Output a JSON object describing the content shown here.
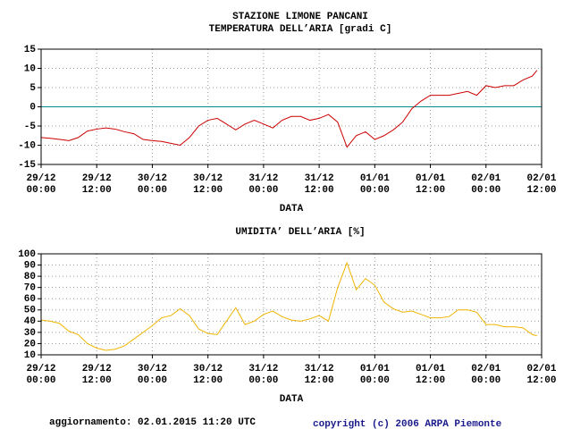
{
  "chart_data": [
    {
      "type": "line",
      "title": "STAZIONE LIMONE PANCANI",
      "subtitle": "TEMPERATURA DELL’ARIA [gradi C]",
      "xlabel": "DATA",
      "xlim": [
        0,
        108
      ],
      "xticks": [
        {
          "value": 0,
          "label": [
            "29/12",
            "00:00"
          ]
        },
        {
          "value": 12,
          "label": [
            "29/12",
            "12:00"
          ]
        },
        {
          "value": 24,
          "label": [
            "30/12",
            "00:00"
          ]
        },
        {
          "value": 36,
          "label": [
            "30/12",
            "12:00"
          ]
        },
        {
          "value": 48,
          "label": [
            "31/12",
            "00:00"
          ]
        },
        {
          "value": 60,
          "label": [
            "31/12",
            "12:00"
          ]
        },
        {
          "value": 72,
          "label": [
            "01/01",
            "00:00"
          ]
        },
        {
          "value": 84,
          "label": [
            "01/01",
            "12:00"
          ]
        },
        {
          "value": 96,
          "label": [
            "02/01",
            "00:00"
          ]
        },
        {
          "value": 108,
          "label": [
            "02/01",
            "12:00"
          ]
        }
      ],
      "ylim": [
        -15,
        15
      ],
      "yticks": [
        -15,
        -10,
        -5,
        0,
        5,
        10,
        15
      ],
      "grid": true,
      "zero_line": {
        "value": 0,
        "color": "#008b8b"
      },
      "x": [
        0,
        2,
        4,
        6,
        8,
        10,
        12,
        14,
        16,
        18,
        20,
        22,
        24,
        26,
        28,
        30,
        32,
        34,
        36,
        38,
        40,
        42,
        44,
        46,
        48,
        50,
        52,
        54,
        56,
        58,
        60,
        62,
        64,
        66,
        68,
        70,
        72,
        74,
        76,
        78,
        80,
        82,
        84,
        86,
        88,
        90,
        92,
        94,
        96,
        98,
        100,
        102,
        104,
        106,
        107
      ],
      "series": [
        {
          "color": "#cc0000",
          "values": [
            -8,
            -8.2,
            -8.5,
            -8.8,
            -8,
            -6.3,
            -5.8,
            -5.5,
            -5.8,
            -6.5,
            -7,
            -8.5,
            -8.8,
            -9,
            -9.5,
            -10,
            -8,
            -5,
            -3.5,
            -3,
            -4.5,
            -6,
            -4.5,
            -3.5,
            -4.5,
            -5.5,
            -3.5,
            -2.5,
            -2.5,
            -3.5,
            -3,
            -2,
            -4,
            -10.5,
            -7.5,
            -6.5,
            -8.5,
            -7.5,
            -6,
            -4,
            -0.5,
            1.5,
            3,
            3,
            3,
            3.5,
            4,
            3,
            5.5,
            5,
            5.5,
            5.5,
            7,
            8,
            9.5
          ]
        }
      ]
    },
    {
      "type": "line",
      "title": "UMIDITA’ DELL’ARIA [%]",
      "xlabel": "DATA",
      "xlim": [
        0,
        108
      ],
      "xticks": [
        {
          "value": 0,
          "label": [
            "29/12",
            "00:00"
          ]
        },
        {
          "value": 12,
          "label": [
            "29/12",
            "12:00"
          ]
        },
        {
          "value": 24,
          "label": [
            "30/12",
            "00:00"
          ]
        },
        {
          "value": 36,
          "label": [
            "30/12",
            "12:00"
          ]
        },
        {
          "value": 48,
          "label": [
            "31/12",
            "00:00"
          ]
        },
        {
          "value": 60,
          "label": [
            "31/12",
            "12:00"
          ]
        },
        {
          "value": 72,
          "label": [
            "01/01",
            "00:00"
          ]
        },
        {
          "value": 84,
          "label": [
            "01/01",
            "12:00"
          ]
        },
        {
          "value": 96,
          "label": [
            "02/01",
            "00:00"
          ]
        },
        {
          "value": 108,
          "label": [
            "02/01",
            "12:00"
          ]
        }
      ],
      "ylim": [
        10,
        100
      ],
      "yticks": [
        10,
        20,
        30,
        40,
        50,
        60,
        70,
        80,
        90,
        100
      ],
      "grid": true,
      "x": [
        0,
        2,
        4,
        6,
        8,
        10,
        12,
        14,
        16,
        18,
        20,
        22,
        24,
        26,
        28,
        30,
        32,
        34,
        36,
        38,
        40,
        42,
        44,
        46,
        48,
        50,
        52,
        54,
        56,
        58,
        60,
        62,
        64,
        66,
        68,
        70,
        72,
        74,
        76,
        78,
        80,
        82,
        84,
        86,
        88,
        90,
        92,
        94,
        96,
        98,
        100,
        102,
        104,
        106,
        107
      ],
      "series": [
        {
          "color": "#f0b400",
          "values": [
            41,
            40,
            38,
            31,
            28,
            20,
            16,
            14,
            15,
            18,
            24,
            30,
            36,
            43,
            45,
            51,
            45,
            33,
            29,
            28,
            40,
            52,
            37,
            40,
            46,
            49,
            44,
            41,
            40,
            42,
            45,
            40,
            70,
            92,
            68,
            78,
            72,
            57,
            51,
            48,
            49,
            46,
            43,
            43,
            44,
            50,
            50,
            48,
            37,
            37,
            35,
            35,
            34,
            28,
            27
          ]
        }
      ]
    }
  ],
  "footer": {
    "updated": "aggiornamento: 02.01.2015 11:20 UTC",
    "copyright": "copyright (c) 2006 ARPA Piemonte"
  }
}
